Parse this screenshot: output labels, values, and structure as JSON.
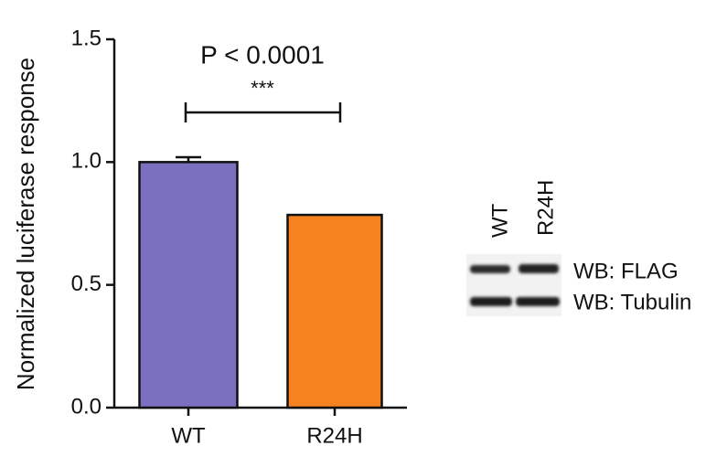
{
  "chart_data": {
    "type": "bar",
    "y_label": "Normalized luciferase response",
    "categories": [
      "WT",
      "R24H"
    ],
    "values": [
      1.0,
      0.785
    ],
    "errors": [
      0.02,
      null
    ],
    "colors": [
      "#7b70be",
      "#f5821f"
    ],
    "ylim": [
      0,
      1.5
    ],
    "yticks": [
      {
        "value": 0,
        "label": "0.0"
      },
      0.5,
      {
        "value": 1,
        "label": "1.0"
      },
      1.5
    ],
    "annotation": "P < 0.0001",
    "significance": "***",
    "blot": {
      "lanes": [
        "WT",
        "R24H"
      ],
      "rows": [
        "WB: FLAG",
        "WB: Tubulin"
      ]
    }
  }
}
